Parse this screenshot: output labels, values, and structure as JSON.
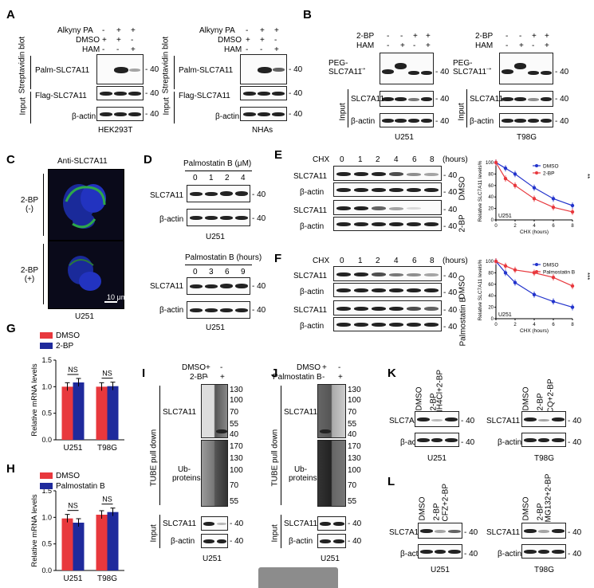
{
  "panels": {
    "A": "A",
    "B": "B",
    "C": "C",
    "D": "D",
    "E": "E",
    "F": "F",
    "G": "G",
    "H": "H",
    "I": "I",
    "J": "J",
    "K": "K",
    "L": "L"
  },
  "common": {
    "mw40": "- 40",
    "mw40b": "- 40",
    "beta_actin": "β-actin",
    "slc7a11": "SLC7A11",
    "input": "Input",
    "u251": "U251",
    "t98g": "T98G",
    "plus": "+",
    "minus": "-",
    "dmso": "DMSO"
  },
  "A": {
    "row_alkyny": "Alkyny PA",
    "row_dmso": "DMSO",
    "row_ham": "HAM",
    "palm": "Palm-SLC7A11",
    "flag": "Flag-SLC7A11",
    "strep": "Streptavidin blot",
    "cell1": "HEK293T",
    "cell2": "NHAs"
  },
  "B": {
    "row_2bp": "2-BP",
    "row_ham": "HAM",
    "peg": "PEG-SLC7A11",
    "cell1": "U251",
    "cell2": "T98G"
  },
  "C": {
    "title": "Anti-SLC7A11",
    "label_minus": "2-BP (-)",
    "label_plus": "2-BP (+)",
    "scale": "10 μm",
    "cell": "U251"
  },
  "D": {
    "title1": "Palmostatin B (μM)",
    "doses": [
      "0",
      "1",
      "2",
      "4"
    ],
    "title2": "Palmostatin B (hours)",
    "times": [
      "0",
      "3",
      "6",
      "9"
    ],
    "cell": "U251"
  },
  "E": {
    "chx": "CHX",
    "times": [
      "0",
      "1",
      "2",
      "4",
      "6",
      "8"
    ],
    "unit": "(hours)",
    "side1": "DMSO",
    "side2": "2-BP"
  },
  "F": {
    "chx": "CHX",
    "times": [
      "0",
      "1",
      "2",
      "4",
      "6",
      "8"
    ],
    "unit": "(hours)",
    "side1": "DMSO",
    "side2": "Palmostatin B"
  },
  "I": {
    "row_dmso": "DMSO",
    "row_trt": "2-BP",
    "pull": "TUBE pull down",
    "ub": "Ub-proteins",
    "mw": [
      "130",
      "100",
      "70",
      "55",
      "40"
    ],
    "mw2": [
      "170",
      "130",
      "100",
      "70",
      "55"
    ],
    "cell": "U251"
  },
  "J": {
    "row_dmso": "DMSO",
    "row_trt": "Palmostatin B",
    "pull": "TUBE pull down",
    "ub": "Ub-proteins",
    "mw": [
      "130",
      "100",
      "70",
      "55",
      "40"
    ],
    "mw2": [
      "170",
      "130",
      "100",
      "70",
      "55"
    ],
    "cell": "U251"
  },
  "K": {
    "lanes1": [
      "DMSO",
      "2-BP",
      "NH4Cl+2-BP"
    ],
    "lanes2": [
      "DMSO",
      "2-BP",
      "CQ+2-BP"
    ]
  },
  "L": {
    "lanes1": [
      "DMSO",
      "2-BP",
      "CFZ+2-BP"
    ],
    "lanes2": [
      "DMSO",
      "2-BP",
      "MG132+2-BP"
    ]
  },
  "chart_data": [
    {
      "type": "line",
      "panel": "E",
      "title": "",
      "xlabel": "CHX (hours)",
      "ylabel": "Relative SLC7A11 levels%",
      "xlim": [
        0,
        8
      ],
      "ylim": [
        0,
        100
      ],
      "xticks": [
        0,
        2,
        4,
        6,
        8
      ],
      "yticks": [
        0,
        20,
        40,
        60,
        80,
        100
      ],
      "annotation": "U251",
      "significance": "**",
      "legend_position": "top-right",
      "series": [
        {
          "name": "DMSO",
          "color": "#2233cc",
          "x": [
            0,
            1,
            2,
            4,
            6,
            8
          ],
          "y": [
            100,
            90,
            80,
            56,
            37,
            25
          ]
        },
        {
          "name": "2-BP",
          "color": "#e8383d",
          "x": [
            0,
            1,
            2,
            4,
            6,
            8
          ],
          "y": [
            100,
            72,
            60,
            37,
            22,
            14
          ]
        }
      ]
    },
    {
      "type": "line",
      "panel": "F",
      "title": "",
      "xlabel": "CHX (hours)",
      "ylabel": "Relative SLC7A11 levels%",
      "xlim": [
        0,
        8
      ],
      "ylim": [
        0,
        100
      ],
      "xticks": [
        0,
        2,
        4,
        6,
        8
      ],
      "yticks": [
        0,
        20,
        40,
        60,
        80,
        100
      ],
      "annotation": "U251",
      "significance": "***",
      "legend_position": "top-right",
      "series": [
        {
          "name": "DMSO",
          "color": "#2233cc",
          "x": [
            0,
            1,
            2,
            4,
            6,
            8
          ],
          "y": [
            100,
            80,
            63,
            42,
            30,
            20
          ]
        },
        {
          "name": "Palmostatin B",
          "color": "#e8383d",
          "x": [
            0,
            1,
            2,
            4,
            6,
            8
          ],
          "y": [
            100,
            92,
            85,
            80,
            72,
            57
          ]
        }
      ]
    },
    {
      "type": "bar",
      "panel": "G",
      "title": "",
      "ylabel": "Relative mRNA levels",
      "ylim": [
        0,
        1.5
      ],
      "yticks": [
        0,
        0.5,
        1.0,
        1.5
      ],
      "categories": [
        "U251",
        "T98G"
      ],
      "significance": [
        "NS",
        "NS"
      ],
      "series": [
        {
          "name": "DMSO",
          "color": "#e8383d",
          "values": [
            1.0,
            1.0
          ]
        },
        {
          "name": "2-BP",
          "color": "#1f2a9c",
          "values": [
            1.08,
            1.01
          ]
        }
      ]
    },
    {
      "type": "bar",
      "panel": "H",
      "title": "",
      "ylabel": "Relative mRNA levels",
      "ylim": [
        0,
        1.5
      ],
      "yticks": [
        0,
        0.5,
        1.0,
        1.5
      ],
      "categories": [
        "U251",
        "T98G"
      ],
      "significance": [
        "NS",
        "NS"
      ],
      "series": [
        {
          "name": "DMSO",
          "color": "#e8383d",
          "values": [
            0.98,
            1.05
          ]
        },
        {
          "name": "Palmostatin B",
          "color": "#1f2a9c",
          "values": [
            0.9,
            1.1
          ]
        }
      ]
    }
  ]
}
